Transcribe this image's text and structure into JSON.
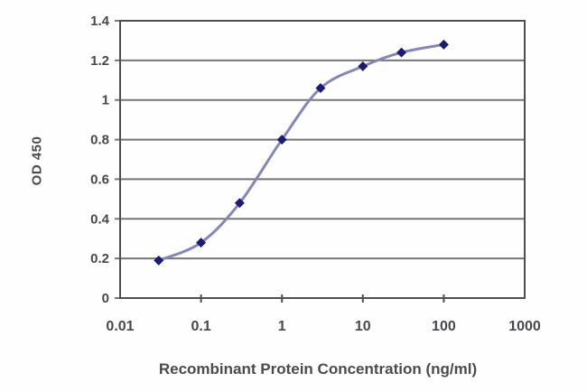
{
  "figure": {
    "title": "",
    "legend": "none"
  },
  "chart_data": {
    "type": "line",
    "title": "",
    "xlabel": "Recombinant Protein Concentration (ng/ml)",
    "ylabel": "OD 450",
    "x_scale": "log10",
    "y_scale": "linear",
    "xlim": [
      0.01,
      1000
    ],
    "ylim": [
      0,
      1.4
    ],
    "x_ticks": [
      0.01,
      0.1,
      1,
      10,
      100,
      1000
    ],
    "x_tick_labels": [
      "0.01",
      "0.1",
      "1",
      "10",
      "100",
      "1000"
    ],
    "y_ticks": [
      0,
      0.2,
      0.4,
      0.6,
      0.8,
      1,
      1.2,
      1.4
    ],
    "y_tick_labels": [
      "0",
      "0.2",
      "0.4",
      "0.6",
      "0.8",
      "1",
      "1.2",
      "1.4"
    ],
    "grid": "horizontal",
    "legend_position": "none",
    "marker": "diamond",
    "series": [
      {
        "name": "OD 450",
        "x": [
          0.03,
          0.1,
          0.3,
          1,
          3,
          10,
          30,
          100
        ],
        "y": [
          0.19,
          0.28,
          0.48,
          0.8,
          1.06,
          1.17,
          1.24,
          1.28
        ]
      }
    ],
    "colors": {
      "line": "#8487b5",
      "marker": "#1c1c74",
      "grid": "#767676",
      "frame": "#4f4f4f",
      "tick_text": "#48484e",
      "label_text": "#4a4a50",
      "background": "#fefefe"
    }
  }
}
